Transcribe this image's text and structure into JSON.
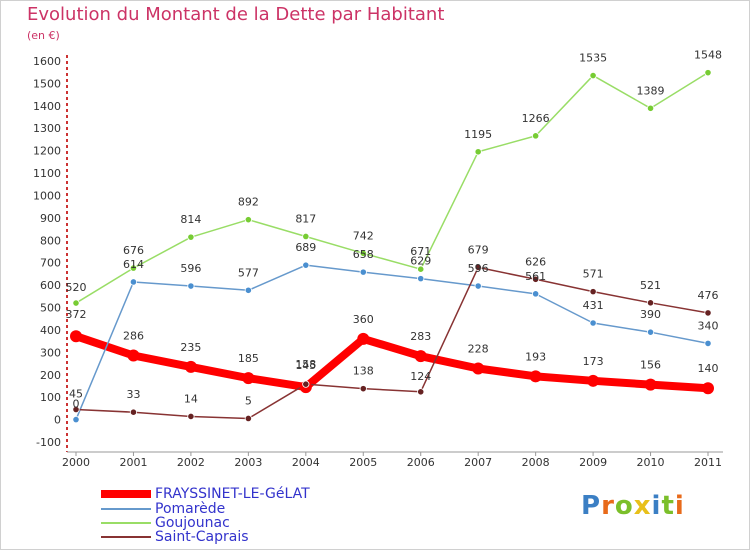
{
  "title": "Evolution du Montant de la Dette par Habitant",
  "unit": "(en €)",
  "logo": {
    "text": "Proxiti",
    "colors": [
      "#3b7fc4",
      "#e86a1a",
      "#7bbf2a",
      "#e8c01a",
      "#3b7fc4",
      "#7bbf2a",
      "#e86a1a"
    ]
  },
  "chart_data": {
    "type": "line",
    "x": [
      "2000",
      "2001",
      "2002",
      "2003",
      "2004",
      "2005",
      "2006",
      "2007",
      "2008",
      "2009",
      "2010",
      "2011"
    ],
    "ylim": [
      -100,
      1600
    ],
    "yticks": [
      -100,
      0,
      100,
      200,
      300,
      400,
      500,
      600,
      700,
      800,
      900,
      1000,
      1100,
      1200,
      1300,
      1400,
      1500,
      1600
    ],
    "grid": false,
    "legend_position": "bottom-left",
    "series": [
      {
        "name": "FRAYSSINET-LE-GéLAT",
        "color": "#ff0000",
        "width": 8,
        "marker_color": "#ff0000",
        "values": [
          372,
          286,
          235,
          185,
          145,
          360,
          283,
          228,
          193,
          173,
          156,
          140
        ],
        "label_dy": [
          -18,
          -16,
          -16,
          -16,
          -18,
          -16,
          -16,
          -16,
          -16,
          -16,
          -16,
          -16
        ]
      },
      {
        "name": "Pomarède",
        "color": "#6699cc",
        "width": 1.5,
        "marker_color": "#4a8fd0",
        "values": [
          0,
          614,
          596,
          577,
          689,
          658,
          629,
          596,
          561,
          431,
          390,
          340
        ],
        "label_dy": [
          -12,
          -14,
          -14,
          -14,
          -14,
          -14,
          -14,
          -14,
          -14,
          -14,
          -14,
          -14
        ]
      },
      {
        "name": "Goujounac",
        "color": "#99dd66",
        "width": 1.5,
        "marker_color": "#77cc33",
        "values": [
          520,
          676,
          814,
          892,
          817,
          742,
          671,
          1195,
          1266,
          1535,
          1389,
          1548
        ],
        "label_dy": [
          -12,
          -14,
          -14,
          -14,
          -14,
          -14,
          -14,
          -14,
          -14,
          -14,
          -14,
          -14
        ]
      },
      {
        "name": "Saint-Caprais",
        "color": "#883333",
        "width": 1.5,
        "marker_color": "#662222",
        "values": [
          45,
          33,
          14,
          5,
          158,
          138,
          124,
          679,
          626,
          571,
          521,
          476
        ],
        "label_dy": [
          -12,
          -14,
          -14,
          -14,
          -16,
          -14,
          -12,
          -14,
          -14,
          -14,
          -14,
          -14
        ]
      }
    ]
  }
}
